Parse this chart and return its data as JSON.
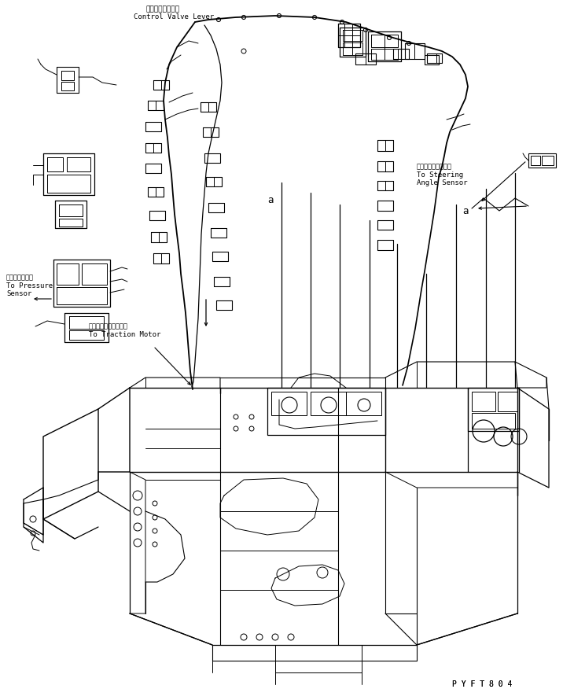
{
  "bg_color": "#ffffff",
  "line_color": "#000000",
  "fig_width": 7.16,
  "fig_height": 8.9,
  "dpi": 100,
  "part_code": "P Y F T 8 0 4",
  "labels": {
    "control_valve_jp": "制御バルブレバー",
    "control_valve_en": "Control Valve Lever",
    "steering_jp": "タイヤ角センサーヘ",
    "steering_en1": "To Steering",
    "steering_en2": "Angle Sensor",
    "pressure_jp": "圧力センサーヘ",
    "pressure_en1": "To Pressure",
    "pressure_en2": "Sensor",
    "traction_jp": "トラクションモータヘ",
    "traction_en": "To Traction Motor",
    "label_a_center": "a",
    "label_a_right": "a"
  }
}
